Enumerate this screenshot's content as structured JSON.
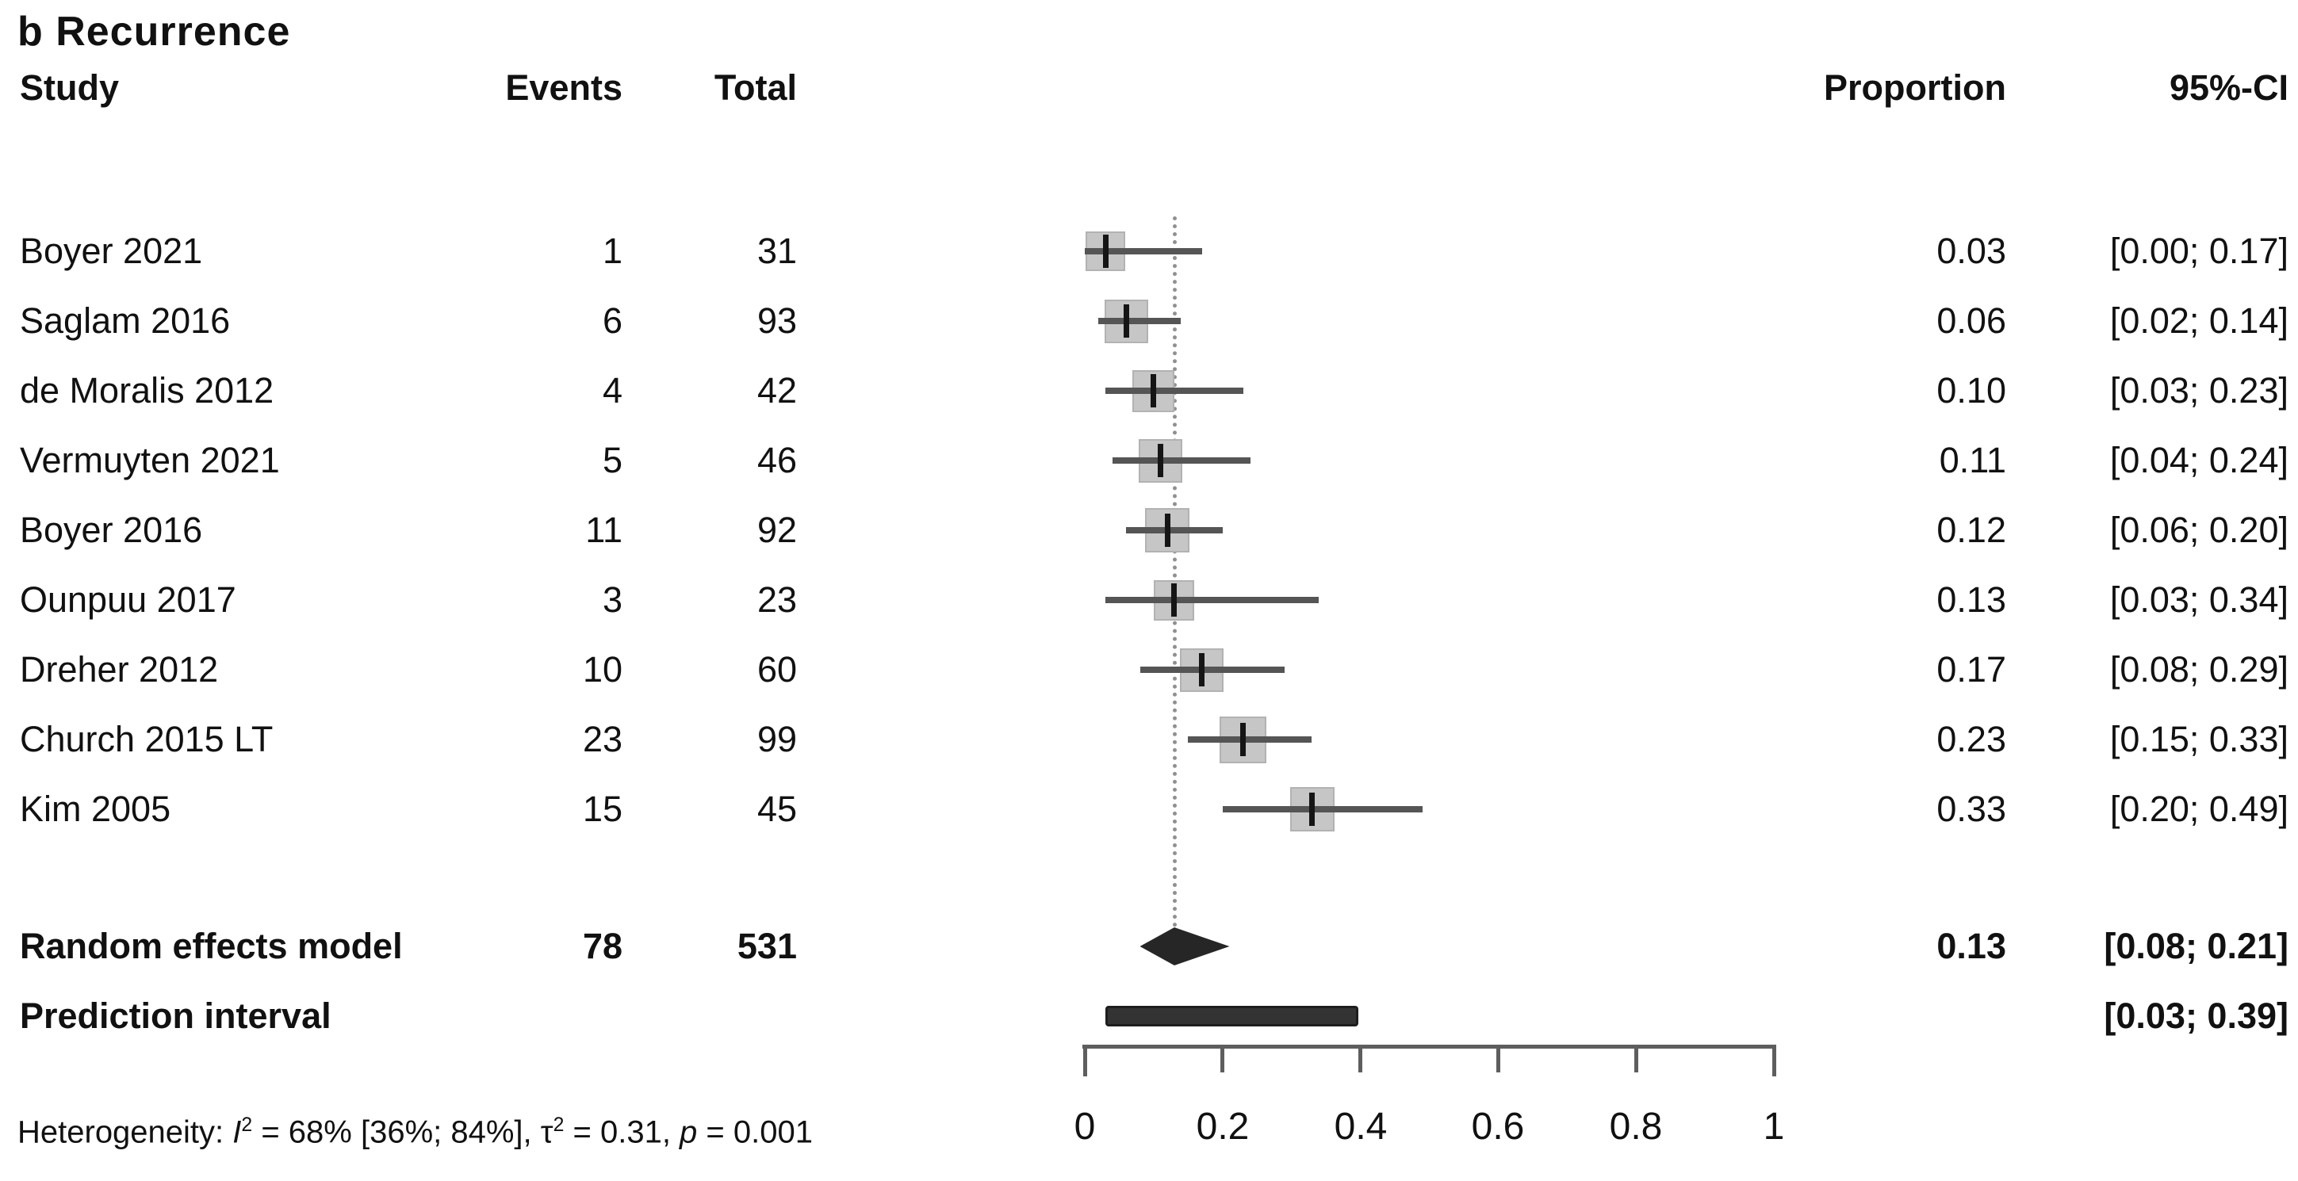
{
  "figure_title": "b Recurrence",
  "columns": {
    "study": "Study",
    "events": "Events",
    "total": "Total",
    "proportion": "Proportion",
    "ci": "95%-CI"
  },
  "chart_data": {
    "type": "scatter",
    "subtype": "forest_plot_meta_analysis_proportions",
    "title": "b Recurrence",
    "xlabel": "",
    "x_range": [
      0,
      1
    ],
    "x_tick_values": [
      0,
      0.2,
      0.4,
      0.6,
      0.8,
      1
    ],
    "x_tick_labels": [
      "0",
      "0.2",
      "0.4",
      "0.6",
      "0.8",
      "1"
    ],
    "grid": false,
    "reference_line_value": 0.13,
    "studies": [
      {
        "study": "Boyer 2021",
        "events": "1",
        "total": "31",
        "proportion": 0.03,
        "proportion_label": "0.03",
        "ci_low": 0.0,
        "ci_high": 0.17,
        "ci_label": "[0.00; 0.17]",
        "marker_px": 50
      },
      {
        "study": "Saglam 2016",
        "events": "6",
        "total": "93",
        "proportion": 0.06,
        "proportion_label": "0.06",
        "ci_low": 0.02,
        "ci_high": 0.14,
        "ci_label": "[0.02; 0.14]",
        "marker_px": 55
      },
      {
        "study": "de Moralis 2012",
        "events": "4",
        "total": "42",
        "proportion": 0.1,
        "proportion_label": "0.10",
        "ci_low": 0.03,
        "ci_high": 0.23,
        "ci_label": "[0.03; 0.23]",
        "marker_px": 53
      },
      {
        "study": "Vermuyten 2021",
        "events": "5",
        "total": "46",
        "proportion": 0.11,
        "proportion_label": "0.11",
        "ci_low": 0.04,
        "ci_high": 0.24,
        "ci_label": "[0.04; 0.24]",
        "marker_px": 55
      },
      {
        "study": "Boyer 2016",
        "events": "11",
        "total": "92",
        "proportion": 0.12,
        "proportion_label": "0.12",
        "ci_low": 0.06,
        "ci_high": 0.2,
        "ci_label": "[0.06; 0.20]",
        "marker_px": 56
      },
      {
        "study": "Ounpuu 2017",
        "events": "3",
        "total": "23",
        "proportion": 0.13,
        "proportion_label": "0.13",
        "ci_low": 0.03,
        "ci_high": 0.34,
        "ci_label": "[0.03; 0.34]",
        "marker_px": 51
      },
      {
        "study": "Dreher 2012",
        "events": "10",
        "total": "60",
        "proportion": 0.17,
        "proportion_label": "0.17",
        "ci_low": 0.08,
        "ci_high": 0.29,
        "ci_label": "[0.08; 0.29]",
        "marker_px": 55
      },
      {
        "study": "Church 2015 LT",
        "events": "23",
        "total": "99",
        "proportion": 0.23,
        "proportion_label": "0.23",
        "ci_low": 0.15,
        "ci_high": 0.33,
        "ci_label": "[0.15; 0.33]",
        "marker_px": 59
      },
      {
        "study": "Kim 2005",
        "events": "15",
        "total": "45",
        "proportion": 0.33,
        "proportion_label": "0.33",
        "ci_low": 0.2,
        "ci_high": 0.49,
        "ci_label": "[0.20; 0.49]",
        "marker_px": 56
      }
    ],
    "summary_row": {
      "label": "Random effects model",
      "events": "78",
      "total": "531",
      "proportion": 0.13,
      "proportion_label": "0.13",
      "ci_low": 0.08,
      "ci_high": 0.21,
      "ci_label": "[0.08; 0.21]"
    },
    "prediction_row": {
      "label": "Prediction interval",
      "ci_low": 0.03,
      "ci_high": 0.39,
      "ci_label": "[0.03; 0.39]"
    },
    "heterogeneity_segments": [
      {
        "t": "Heterogeneity: "
      },
      {
        "t": "I",
        "style": "italic"
      },
      {
        "t": "2",
        "style": "sup"
      },
      {
        "t": " = 68% [36%; 84%], "
      },
      {
        "t": "τ"
      },
      {
        "t": "2",
        "style": "sup"
      },
      {
        "t": " = 0.31, "
      },
      {
        "t": "p",
        "style": "italic"
      },
      {
        "t": " = 0.001"
      }
    ]
  },
  "colors": {
    "text": "#111111",
    "marker_fill": "#c6c6c6",
    "marker_edge": "#b2b2b2",
    "ci_line": "#555555",
    "point_tick": "#151515",
    "reference_dotted": "#909090",
    "diamond": "#262626",
    "prediction_bar": "#333333",
    "prediction_bar_edge": "#1e1e1e",
    "axis": "#5e5e5e"
  }
}
